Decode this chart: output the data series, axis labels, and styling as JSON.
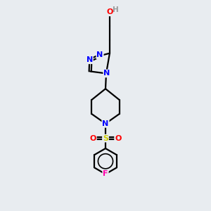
{
  "background_color": "#e8ecf0",
  "bond_color": "#000000",
  "line_width": 1.6,
  "atom_colors": {
    "N": "#0000ff",
    "O": "#ff0000",
    "F": "#ff00aa",
    "S": "#cccc00",
    "H": "#999999",
    "C": "#000000"
  },
  "font_size": 8.0,
  "fig_width": 3.0,
  "fig_height": 3.0,
  "dpi": 100,
  "xlim": [
    0,
    10
  ],
  "ylim": [
    0,
    15
  ]
}
